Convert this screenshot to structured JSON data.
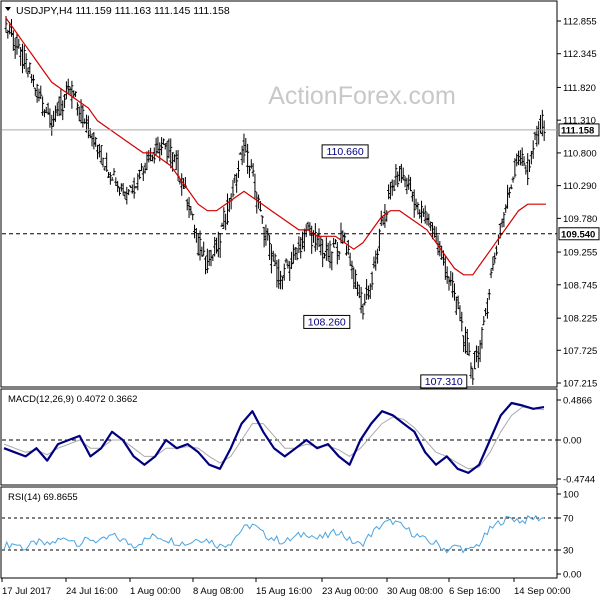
{
  "header": {
    "symbol_line": "USDJPY,H4  111.159 111.163 111.145 111.158",
    "watermark": "ActionForex.com"
  },
  "colors": {
    "candles": "#000000",
    "ma": "#d40000",
    "macd": "#000080",
    "signal": "#aaaaaa",
    "rsi": "#4aa3e0",
    "grid": "#888888"
  },
  "chart_data": [
    {
      "type": "candlestick",
      "title": "USDJPY,H4",
      "quote": {
        "open": 111.159,
        "high": 111.163,
        "low": 111.145,
        "close": 111.158
      },
      "current_price": 111.158,
      "price_axis": {
        "ticks": [
          "112.855",
          "112.345",
          "111.820",
          "111.310",
          "110.800",
          "110.290",
          "109.780",
          "109.255",
          "108.745",
          "108.225",
          "107.725",
          "107.215"
        ],
        "ylim": [
          107.215,
          112.855
        ],
        "highlight_labels": [
          "111.158",
          "109.540"
        ]
      },
      "horizontal_lines": [
        {
          "value": 111.158,
          "style": "solid"
        },
        {
          "value": 109.54,
          "style": "dashed"
        }
      ],
      "annotations": [
        {
          "text": "110.660",
          "value": 110.66
        },
        {
          "text": "108.260",
          "value": 108.26
        },
        {
          "text": "107.310",
          "value": 107.31
        }
      ],
      "x_ticks": [
        "17 Jul 2017",
        "24 Jul 16:00",
        "1 Aug 00:00",
        "8 Aug 08:00",
        "15 Aug 16:00",
        "23 Aug 00:00",
        "30 Aug 08:00",
        "6 Sep 16:00",
        "14 Sep 00:00"
      ],
      "close_path": [
        112.8,
        112.5,
        112.2,
        111.9,
        111.6,
        111.3,
        111.5,
        111.8,
        111.5,
        111.2,
        110.9,
        110.6,
        110.4,
        110.2,
        110.3,
        110.6,
        110.8,
        110.9,
        110.8,
        110.5,
        110.0,
        109.4,
        109.1,
        109.3,
        109.8,
        110.3,
        110.9,
        110.4,
        109.7,
        109.2,
        108.8,
        109.1,
        109.3,
        109.6,
        109.4,
        109.2,
        109.3,
        109.5,
        108.9,
        108.4,
        108.8,
        109.6,
        110.2,
        110.5,
        110.3,
        109.9,
        109.8,
        109.5,
        109.0,
        108.6,
        108.0,
        107.4,
        107.9,
        108.9,
        109.6,
        110.2,
        110.8,
        110.5,
        111.1,
        111.3
      ],
      "ma_path": [
        112.9,
        112.7,
        112.5,
        112.3,
        112.1,
        111.9,
        111.8,
        111.7,
        111.6,
        111.5,
        111.3,
        111.2,
        111.1,
        111.0,
        110.9,
        110.8,
        110.8,
        110.7,
        110.6,
        110.4,
        110.2,
        110.0,
        109.9,
        109.9,
        110.0,
        110.1,
        110.2,
        110.1,
        110.0,
        109.9,
        109.8,
        109.7,
        109.6,
        109.6,
        109.5,
        109.5,
        109.5,
        109.4,
        109.3,
        109.4,
        109.6,
        109.8,
        109.9,
        109.9,
        109.8,
        109.7,
        109.6,
        109.4,
        109.2,
        109.0,
        108.9,
        108.9,
        109.1,
        109.3,
        109.5,
        109.7,
        109.9,
        110.0,
        110.0,
        110.0
      ]
    },
    {
      "type": "line",
      "title": "MACD(12,26,9) 0.4072 0.3662",
      "ylim": [
        -0.4744,
        0.4866
      ],
      "ticks": [
        "0.4866",
        "0.00",
        "-0.4744"
      ],
      "series": [
        {
          "name": "MACD",
          "values": [
            -0.1,
            -0.15,
            -0.2,
            -0.1,
            -0.25,
            -0.05,
            0.0,
            0.05,
            -0.2,
            -0.1,
            0.1,
            0.0,
            -0.2,
            -0.3,
            -0.2,
            0.0,
            -0.1,
            -0.05,
            -0.15,
            -0.3,
            -0.35,
            -0.1,
            0.2,
            0.35,
            0.1,
            -0.1,
            -0.2,
            -0.1,
            0.0,
            -0.1,
            -0.05,
            -0.2,
            -0.3,
            0.0,
            0.2,
            0.35,
            0.3,
            0.2,
            0.1,
            -0.15,
            -0.3,
            -0.2,
            -0.35,
            -0.4,
            -0.3,
            0.0,
            0.3,
            0.45,
            0.42,
            0.38,
            0.4
          ]
        },
        {
          "name": "Signal",
          "values": [
            -0.05,
            -0.1,
            -0.15,
            -0.12,
            -0.18,
            -0.1,
            -0.05,
            0.0,
            -0.1,
            -0.1,
            0.0,
            0.0,
            -0.1,
            -0.2,
            -0.2,
            -0.1,
            -0.1,
            -0.08,
            -0.1,
            -0.2,
            -0.28,
            -0.2,
            0.0,
            0.2,
            0.2,
            0.05,
            -0.1,
            -0.1,
            -0.05,
            -0.08,
            -0.07,
            -0.12,
            -0.2,
            -0.1,
            0.05,
            0.2,
            0.28,
            0.25,
            0.15,
            0.0,
            -0.15,
            -0.2,
            -0.28,
            -0.35,
            -0.33,
            -0.15,
            0.1,
            0.3,
            0.4,
            0.38,
            0.37
          ]
        }
      ]
    },
    {
      "type": "line",
      "title": "RSI(14) 69.8655",
      "ylim": [
        0,
        100
      ],
      "ticks": [
        "100",
        "70",
        "30",
        "0.00"
      ],
      "series": [
        {
          "name": "RSI",
          "values": [
            35,
            38,
            32,
            40,
            36,
            42,
            45,
            38,
            44,
            40,
            48,
            42,
            36,
            42,
            48,
            44,
            40,
            38,
            45,
            42,
            35,
            40,
            55,
            62,
            50,
            44,
            40,
            46,
            52,
            44,
            48,
            54,
            42,
            36,
            50,
            62,
            66,
            58,
            50,
            42,
            38,
            30,
            35,
            28,
            38,
            55,
            66,
            70,
            66,
            70,
            70
          ]
        }
      ]
    }
  ]
}
